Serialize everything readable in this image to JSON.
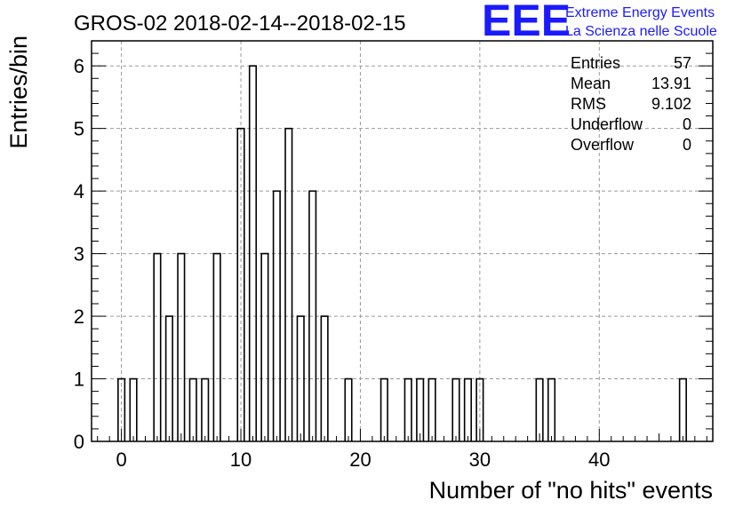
{
  "title": "GROS-02 2018-02-14--2018-02-15",
  "logo": {
    "mark": "EEE",
    "line1": "Extreme Energy Events",
    "line2": "La Scienza nelle Scuole",
    "color": "#1a1aff"
  },
  "stats": [
    {
      "label": "Entries",
      "value": "57"
    },
    {
      "label": "Mean",
      "value": "13.91"
    },
    {
      "label": "RMS",
      "value": "9.102"
    },
    {
      "label": "Underflow",
      "value": "0"
    },
    {
      "label": "Overflow",
      "value": "0"
    }
  ],
  "chart_data": {
    "type": "bar",
    "subtype": "histogram",
    "xlabel": "Number of \"no hits\" events",
    "ylabel": "Entries/bin",
    "xlim": [
      -2.5,
      49.5
    ],
    "ylim": [
      0,
      6.4
    ],
    "bin_width": 1,
    "bars_style": "outline",
    "bar_color": "#000000",
    "grid": true,
    "xticks": [
      0,
      10,
      20,
      30,
      40
    ],
    "yticks": [
      0,
      1,
      2,
      3,
      4,
      5,
      6
    ],
    "bins": [
      {
        "x": 0,
        "count": 1
      },
      {
        "x": 1,
        "count": 1
      },
      {
        "x": 3,
        "count": 3
      },
      {
        "x": 4,
        "count": 2
      },
      {
        "x": 5,
        "count": 3
      },
      {
        "x": 6,
        "count": 1
      },
      {
        "x": 7,
        "count": 1
      },
      {
        "x": 8,
        "count": 3
      },
      {
        "x": 10,
        "count": 5
      },
      {
        "x": 11,
        "count": 6
      },
      {
        "x": 12,
        "count": 3
      },
      {
        "x": 13,
        "count": 4
      },
      {
        "x": 14,
        "count": 5
      },
      {
        "x": 15,
        "count": 2
      },
      {
        "x": 16,
        "count": 4
      },
      {
        "x": 17,
        "count": 2
      },
      {
        "x": 19,
        "count": 1
      },
      {
        "x": 22,
        "count": 1
      },
      {
        "x": 24,
        "count": 1
      },
      {
        "x": 25,
        "count": 1
      },
      {
        "x": 26,
        "count": 1
      },
      {
        "x": 28,
        "count": 1
      },
      {
        "x": 29,
        "count": 1
      },
      {
        "x": 30,
        "count": 1
      },
      {
        "x": 35,
        "count": 1
      },
      {
        "x": 36,
        "count": 1
      },
      {
        "x": 47,
        "count": 1
      }
    ]
  }
}
